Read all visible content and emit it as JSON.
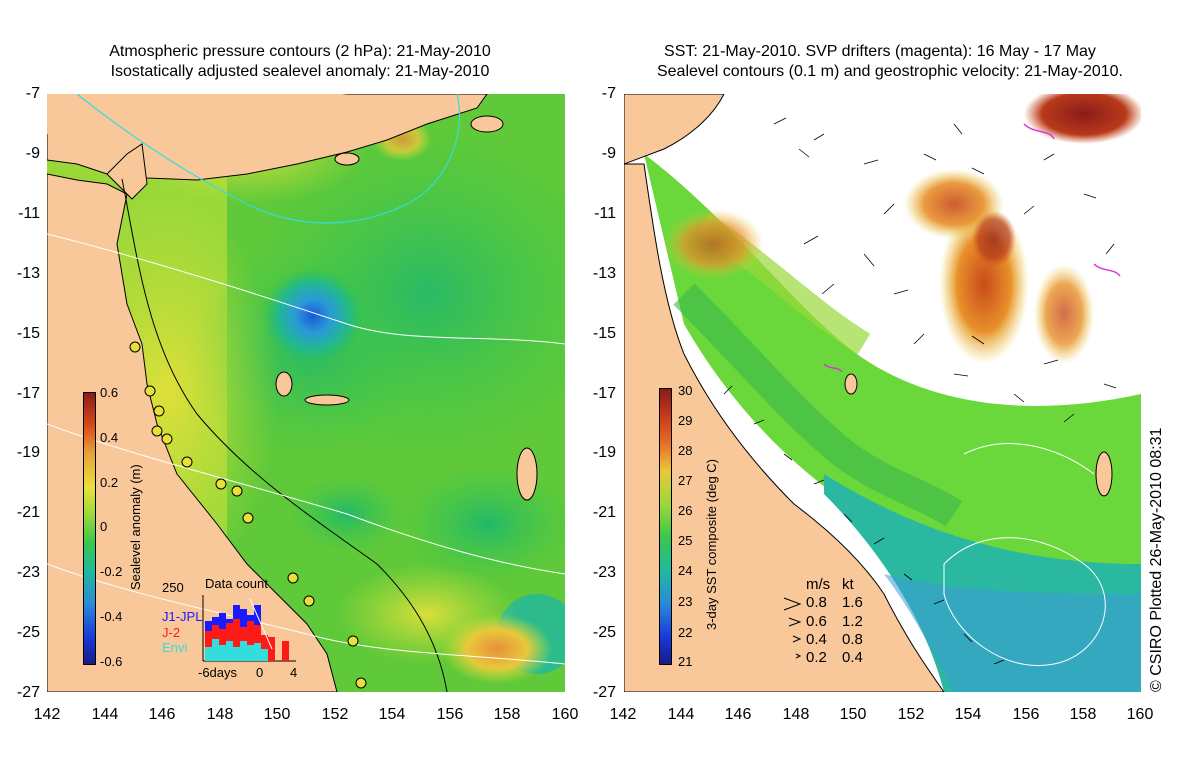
{
  "left_panel": {
    "title_line1": "Atmospheric pressure contours (2 hPa): 21-May-2010",
    "title_line2": "Isostatically adjusted sealevel anomaly: 21-May-2010",
    "colorbar": {
      "label": "Sealevel anomaly (m)",
      "ticks": [
        "0.6",
        "0.4",
        "0.2",
        "0",
        "-0.2",
        "-0.4",
        "-0.6"
      ]
    },
    "inset": {
      "title": "Data count",
      "ymax": "250",
      "legend": [
        {
          "label": "J1-JPL",
          "color": "#1a1aff"
        },
        {
          "label": "J-2",
          "color": "#ff1a1a"
        },
        {
          "label": "Envi",
          "color": "#33dddd"
        }
      ],
      "x_label_days": "-6days",
      "x_label_zero": "0",
      "x_label_four": "4"
    }
  },
  "right_panel": {
    "title_line1": "SST: 21-May-2010. SVP drifters (magenta): 16 May - 17 May",
    "title_line2": "Sealevel contours (0.1 m) and geostrophic velocity: 21-May-2010.",
    "colorbar": {
      "label": "3-day SST composite (deg C)",
      "ticks": [
        "30",
        "29",
        "28",
        "27",
        "26",
        "25",
        "24",
        "23",
        "22",
        "21"
      ]
    },
    "velocity_legend": {
      "header_ms": "m/s",
      "header_kt": "kt",
      "rows": [
        {
          "ms": "0.8",
          "kt": "1.6"
        },
        {
          "ms": "0.6",
          "kt": "1.2"
        },
        {
          "ms": "0.4",
          "kt": "0.8"
        },
        {
          "ms": "0.2",
          "kt": "0.4"
        }
      ]
    }
  },
  "axes": {
    "y_ticks": [
      "-7",
      "-9",
      "-11",
      "-13",
      "-15",
      "-17",
      "-19",
      "-21",
      "-23",
      "-25",
      "-27"
    ],
    "x_ticks": [
      "142",
      "144",
      "146",
      "148",
      "150",
      "152",
      "154",
      "156",
      "158",
      "160"
    ]
  },
  "footer": {
    "plotted": "© CSIRO Plotted 26-May-2010 08:31"
  },
  "colors": {
    "land": "#f8c89a",
    "anomaly_base": "#9ad83a",
    "anomaly_low": "#2a8ad8",
    "sst_warm": "#d86a1a",
    "sst_mid": "#6ad83a",
    "sst_cool": "#3ab8b8",
    "drifter": "#d83ad8"
  }
}
